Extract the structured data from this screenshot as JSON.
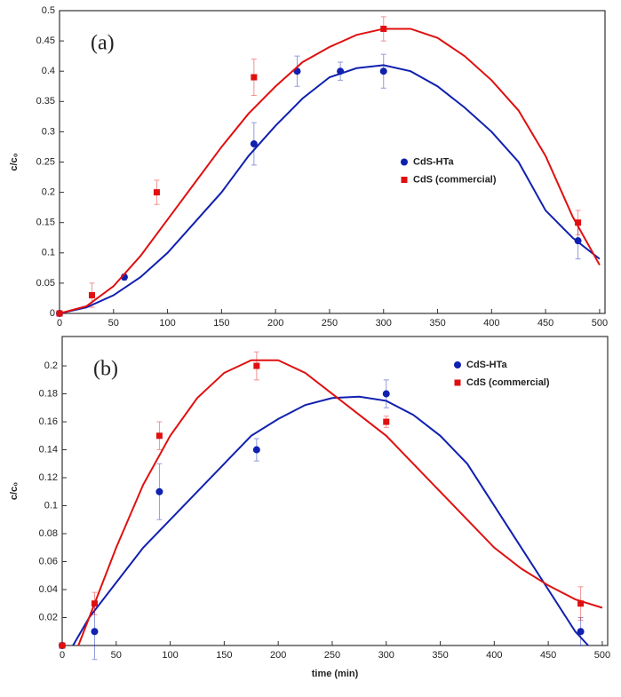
{
  "chart_data": [
    {
      "type": "scatter",
      "panel_label": "(a)",
      "ylabel": "c/c₀",
      "xlim": [
        0,
        505
      ],
      "ylim": [
        0,
        0.5
      ],
      "xticks": [
        0,
        50,
        100,
        150,
        200,
        250,
        300,
        350,
        400,
        450,
        500
      ],
      "yticks": [
        0,
        0.05,
        0.1,
        0.15,
        0.2,
        0.25,
        0.3,
        0.35,
        0.4,
        0.45,
        0.5
      ],
      "legend": "right",
      "series": [
        {
          "name": "CdS-HTa",
          "color": "#1020b0",
          "marker": "circle",
          "x": [
            0,
            60,
            180,
            220,
            260,
            300,
            480
          ],
          "values": [
            0,
            0.06,
            0.28,
            0.4,
            0.4,
            0.4,
            0.12
          ],
          "errors": [
            0,
            0.005,
            0.035,
            0.025,
            0.015,
            0.028,
            0.03
          ],
          "fit": {
            "x": [
              0,
              25,
              50,
              75,
              100,
              125,
              150,
              175,
              200,
              225,
              250,
              275,
              300,
              325,
              350,
              375,
              400,
              425,
              450,
              475,
              500
            ],
            "values": [
              0,
              0.01,
              0.03,
              0.06,
              0.1,
              0.15,
              0.2,
              0.26,
              0.31,
              0.355,
              0.39,
              0.405,
              0.41,
              0.4,
              0.375,
              0.34,
              0.3,
              0.25,
              0.17,
              0.125,
              0.09
            ]
          }
        },
        {
          "name": "CdS (commercial)",
          "color": "#e01010",
          "marker": "square",
          "x": [
            0,
            30,
            90,
            180,
            300,
            480
          ],
          "values": [
            0,
            0.03,
            0.2,
            0.39,
            0.47,
            0.15
          ],
          "errors": [
            0,
            0.02,
            0.02,
            0.03,
            0.02,
            0.02
          ],
          "fit": {
            "x": [
              0,
              25,
              50,
              75,
              100,
              125,
              150,
              175,
              200,
              225,
              250,
              275,
              300,
              325,
              350,
              375,
              400,
              425,
              450,
              475,
              500
            ],
            "values": [
              0,
              0.012,
              0.045,
              0.095,
              0.155,
              0.215,
              0.275,
              0.33,
              0.375,
              0.415,
              0.44,
              0.46,
              0.47,
              0.47,
              0.455,
              0.425,
              0.385,
              0.335,
              0.26,
              0.16,
              0.08
            ]
          }
        }
      ]
    },
    {
      "type": "scatter",
      "panel_label": "(b)",
      "ylabel": "c/c₀",
      "xlabel": "time (min)",
      "xlim": [
        0,
        505
      ],
      "ylim": [
        0,
        0.221
      ],
      "xticks": [
        0,
        50,
        100,
        150,
        200,
        250,
        300,
        350,
        400,
        450,
        500
      ],
      "yticks": [
        0.02,
        0.04,
        0.06,
        0.08,
        0.1,
        0.12,
        0.14,
        0.16,
        0.18,
        0.2
      ],
      "legend": "upper right",
      "series": [
        {
          "name": "CdS-HTa",
          "color": "#1020b0",
          "marker": "circle",
          "x": [
            0,
            30,
            90,
            180,
            300,
            480
          ],
          "values": [
            0,
            0.01,
            0.11,
            0.14,
            0.18,
            0.01
          ],
          "errors": [
            0,
            0.02,
            0.02,
            0.008,
            0.01,
            0.01
          ],
          "fit": {
            "x": [
              10,
              25,
              50,
              75,
              100,
              125,
              150,
              175,
              200,
              225,
              250,
              275,
              300,
              325,
              350,
              375,
              400,
              425,
              450,
              475,
              487
            ],
            "values": [
              0,
              0.02,
              0.045,
              0.07,
              0.09,
              0.11,
              0.13,
              0.15,
              0.162,
              0.172,
              0.177,
              0.178,
              0.175,
              0.165,
              0.15,
              0.13,
              0.1,
              0.07,
              0.04,
              0.01,
              0
            ]
          }
        },
        {
          "name": "CdS (commercial)",
          "color": "#e01010",
          "marker": "square",
          "x": [
            0,
            30,
            90,
            180,
            300,
            480
          ],
          "values": [
            0,
            0.03,
            0.15,
            0.2,
            0.16,
            0.03
          ],
          "errors": [
            0,
            0.008,
            0.01,
            0.01,
            0.004,
            0.012
          ],
          "fit": {
            "x": [
              15,
              25,
              50,
              75,
              100,
              125,
              150,
              175,
              200,
              225,
              250,
              275,
              300,
              325,
              350,
              375,
              400,
              425,
              450,
              475,
              500
            ],
            "values": [
              0,
              0.02,
              0.07,
              0.115,
              0.15,
              0.177,
              0.195,
              0.204,
              0.204,
              0.195,
              0.18,
              0.165,
              0.15,
              0.13,
              0.11,
              0.09,
              0.07,
              0.055,
              0.043,
              0.033,
              0.027
            ]
          }
        }
      ]
    }
  ]
}
